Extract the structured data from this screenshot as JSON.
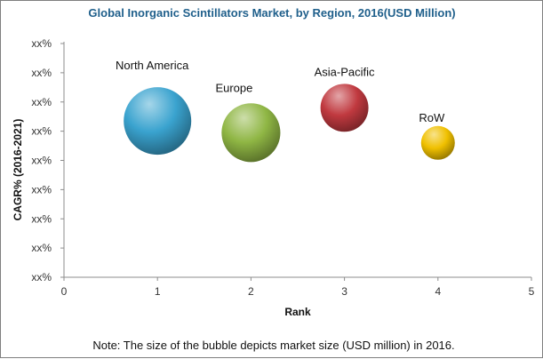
{
  "chart_data": {
    "type": "scatter",
    "title": "Global Inorganic Scintillators  Market, by Region, 2016(USD Million)",
    "xlabel": "Rank",
    "ylabel": "CAGR% (2016-2021)",
    "xlim": [
      0,
      5
    ],
    "x_ticks": [
      "0",
      "1",
      "2",
      "3",
      "4",
      "5"
    ],
    "ylim": [
      0,
      8
    ],
    "y_ticks": [
      "xx%",
      "xx%",
      "xx%",
      "xx%",
      "xx%",
      "xx%",
      "xx%",
      "xx%",
      "xx%"
    ],
    "grid": false,
    "points": [
      {
        "label": "North America",
        "x": 1,
        "y": 5.35,
        "size": 1.0,
        "color": "#3aa3cf"
      },
      {
        "label": "Europe",
        "x": 2,
        "y": 4.95,
        "size": 0.87,
        "color": "#8fb644"
      },
      {
        "label": "Asia-Pacific",
        "x": 3,
        "y": 5.8,
        "size": 0.71,
        "color": "#c0393f"
      },
      {
        "label": "RoW",
        "x": 4,
        "y": 4.6,
        "size": 0.5,
        "color": "#f0c000"
      }
    ],
    "note": "Note: The size of the bubble depicts market size (USD million) in 2016.",
    "title_color": "#1f5f8b"
  }
}
